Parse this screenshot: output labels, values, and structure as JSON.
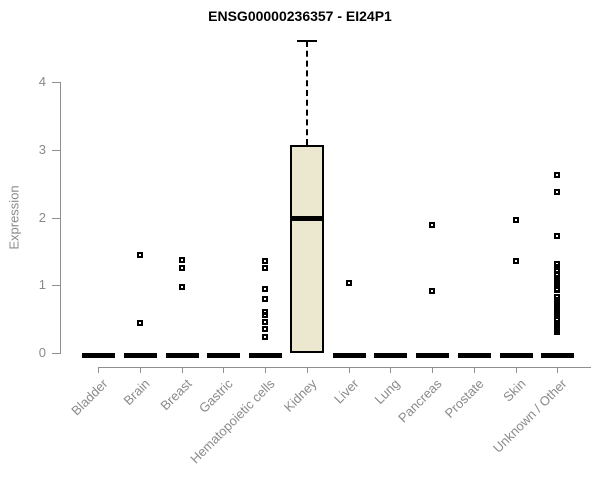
{
  "title": "ENSG00000236357 - EI24P1",
  "chart_data": {
    "type": "boxplot",
    "title": "ENSG00000236357 - EI24P1",
    "xlabel": "",
    "ylabel": "Expression",
    "ylim": [
      0,
      4.7
    ],
    "yticks": [
      0,
      1,
      2,
      3,
      4
    ],
    "grid": false,
    "legend": "none",
    "box_fill": "#ece8cf",
    "box_border": "#000000",
    "axis_color": "#8f8f8f",
    "label_color": "#8a8a8a",
    "categories": [
      "Bladder",
      "Brain",
      "Breast",
      "Gastric",
      "Hematopoietic cells",
      "Kidney",
      "Liver",
      "Lung",
      "Pancreas",
      "Prostate",
      "Skin",
      "Unknown / Other"
    ],
    "boxes": [
      {
        "category": "Bladder",
        "q1": 0,
        "median": 0,
        "q3": 0,
        "whisker_low": 0,
        "whisker_high": 0,
        "outliers": []
      },
      {
        "category": "Brain",
        "q1": 0,
        "median": 0,
        "q3": 0,
        "whisker_low": 0,
        "whisker_high": 0,
        "outliers": [
          1.44,
          0.45
        ]
      },
      {
        "category": "Breast",
        "q1": 0,
        "median": 0,
        "q3": 0,
        "whisker_low": 0,
        "whisker_high": 0,
        "outliers": [
          1.37,
          1.26,
          0.97
        ]
      },
      {
        "category": "Gastric",
        "q1": 0,
        "median": 0,
        "q3": 0,
        "whisker_low": 0,
        "whisker_high": 0,
        "outliers": []
      },
      {
        "category": "Hematopoietic cells",
        "q1": 0,
        "median": 0,
        "q3": 0,
        "whisker_low": 0,
        "whisker_high": 0,
        "outliers": [
          1.36,
          1.25,
          0.94,
          0.79,
          0.61,
          0.56,
          0.46,
          0.36,
          0.24
        ]
      },
      {
        "category": "Kidney",
        "q1": 0,
        "median": 2.0,
        "q3": 3.07,
        "whisker_low": 0,
        "whisker_high": 4.6,
        "outliers": []
      },
      {
        "category": "Liver",
        "q1": 0,
        "median": 0,
        "q3": 0,
        "whisker_low": 0,
        "whisker_high": 0,
        "outliers": [
          1.04
        ]
      },
      {
        "category": "Lung",
        "q1": 0,
        "median": 0,
        "q3": 0,
        "whisker_low": 0,
        "whisker_high": 0,
        "outliers": []
      },
      {
        "category": "Pancreas",
        "q1": 0,
        "median": 0,
        "q3": 0,
        "whisker_low": 0,
        "whisker_high": 0,
        "outliers": [
          1.89,
          0.91
        ]
      },
      {
        "category": "Prostate",
        "q1": 0,
        "median": 0,
        "q3": 0,
        "whisker_low": 0,
        "whisker_high": 0,
        "outliers": []
      },
      {
        "category": "Skin",
        "q1": 0,
        "median": 0,
        "q3": 0,
        "whisker_low": 0,
        "whisker_high": 0,
        "outliers": [
          1.96,
          1.36
        ]
      },
      {
        "category": "Unknown / Other",
        "q1": 0,
        "median": 0,
        "q3": 0,
        "whisker_low": 0,
        "whisker_high": 0,
        "outliers": [
          2.62,
          2.37,
          1.73,
          1.32,
          1.27,
          1.23,
          1.15,
          1.11,
          1.07,
          1.03,
          0.99,
          0.95,
          0.93,
          0.82,
          0.78,
          0.74,
          0.7,
          0.66,
          0.62,
          0.58,
          0.54,
          0.5,
          0.42,
          0.38,
          0.34,
          0.31
        ]
      }
    ]
  }
}
